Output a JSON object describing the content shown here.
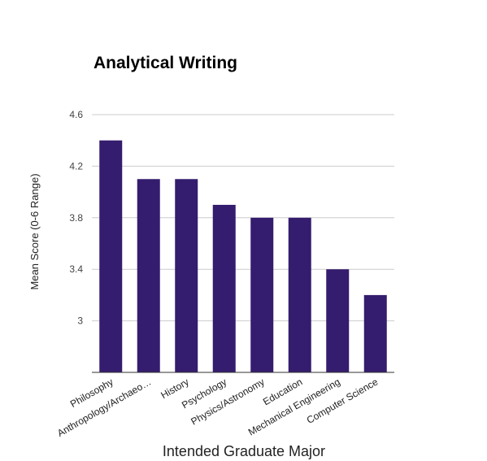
{
  "chart_data": {
    "type": "bar",
    "title": "Analytical Writing",
    "xlabel": "Intended Graduate Major",
    "ylabel": "Mean Score (0-6 Range)",
    "categories": [
      "Philosophy",
      "Anthropology/Archaeo…",
      "History",
      "Psychology",
      "Physics/Astronomy",
      "Education",
      "Mechanical Engineering",
      "Computer Science"
    ],
    "values": [
      4.4,
      4.1,
      4.1,
      3.9,
      3.8,
      3.8,
      3.4,
      3.2
    ],
    "yticks": [
      "3",
      "3.4",
      "3.8",
      "4.2",
      "4.6"
    ],
    "ylim": [
      2.6,
      4.6
    ],
    "grid": true,
    "bar_color": "#341c6e"
  }
}
